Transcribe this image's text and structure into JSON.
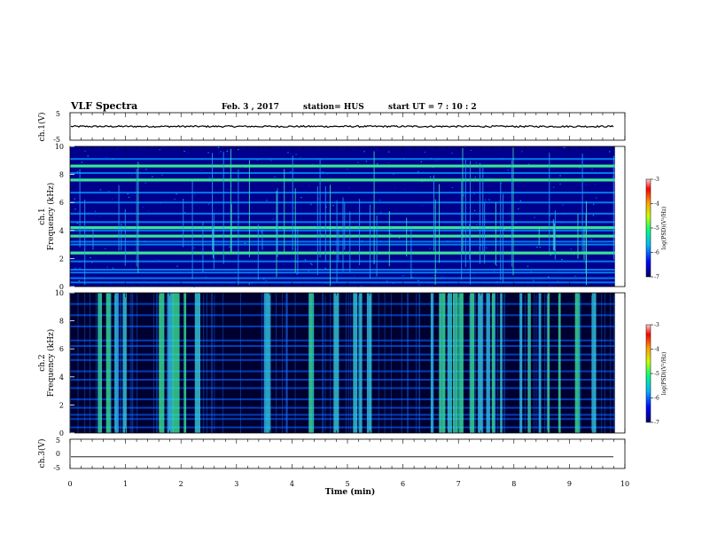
{
  "header": {
    "title": "VLF Spectra",
    "date": "Feb. 3 , 2017",
    "station": "station= HUS",
    "start": "start UT = 7 : 10 : 2"
  },
  "labels": {
    "ch1_voltage": "ch.1(V)",
    "ch1_channel": "ch.1",
    "ch1_freq": "Frequency (kHz)",
    "ch2_channel": "ch.2",
    "ch2_freq": "Frequency (kHz)",
    "ch3_voltage": "ch.3(V)",
    "colorbar_label_1": "log(PSD)(V²/Hz)",
    "colorbar_label_2": "log(PSD)(V²/Hz)",
    "xlabel": "Time (min)"
  },
  "colors": {
    "background": "#00003a",
    "accent_green": "#4cf03c",
    "accent_cyan": "#3cd0ff"
  },
  "chart_data": [
    {
      "type": "line",
      "panel": "ch1_waveform",
      "ylabel": "ch.1(V)",
      "ylim": [
        -5,
        5
      ],
      "yticks": [
        "5",
        "-5"
      ],
      "xlim": [
        0,
        10
      ],
      "description_values": {
        "baseline_v": 0.0,
        "amplitude_v": 0.3
      }
    },
    {
      "type": "heatmap",
      "panel": "ch1_spectrogram",
      "ylabel": "Frequency (kHz)",
      "ylim": [
        0,
        10
      ],
      "yticks": [
        "0",
        "2",
        "4",
        "6",
        "8",
        "10"
      ],
      "xlim": [
        0,
        9.82
      ],
      "colorbar": {
        "range": [
          -7,
          -3
        ],
        "ticks": [
          "-3",
          "-4",
          "-5",
          "-6",
          "-7"
        ]
      },
      "bands_khz": [
        0.3,
        0.6,
        1.0,
        1.2,
        1.8,
        2.4,
        3.0,
        3.2,
        3.6,
        4.0,
        4.2,
        4.6,
        5.2,
        6.0,
        6.7,
        7.6,
        8.1,
        8.6,
        9.1
      ],
      "strong_bands_khz": [
        2.4,
        3.6,
        4.2,
        7.6,
        8.6
      ]
    },
    {
      "type": "heatmap",
      "panel": "ch2_spectrogram",
      "ylabel": "Frequency (kHz)",
      "ylim": [
        0,
        10
      ],
      "yticks": [
        "0",
        "2",
        "4",
        "6",
        "8",
        "10"
      ],
      "xlim": [
        0,
        9.82
      ],
      "colorbar": {
        "range": [
          -7,
          -3
        ],
        "ticks": [
          "-3",
          "-4",
          "-5",
          "-6",
          "-7"
        ]
      },
      "bands_khz": [
        0.4,
        1.0,
        1.3,
        1.8,
        2.4,
        3.2,
        3.8,
        4.4,
        5.2,
        5.6,
        6.2,
        6.6,
        7.6,
        8.4,
        9.2
      ],
      "burst_times_min": [
        0.5,
        0.65,
        0.8,
        0.95,
        1.6,
        1.75,
        1.85,
        2.05,
        2.25,
        3.5,
        4.3,
        4.75,
        5.1,
        5.2,
        5.35,
        6.5,
        6.65,
        6.8,
        6.9,
        7.0,
        7.2,
        7.35,
        7.5,
        7.6,
        7.75,
        8.1,
        8.25,
        8.45,
        8.6,
        8.8,
        9.1,
        9.4
      ]
    },
    {
      "type": "line",
      "panel": "ch3_waveform",
      "ylabel": "ch.3(V)",
      "ylim": [
        -5,
        5
      ],
      "yticks": [
        "5",
        "0",
        "-5"
      ],
      "xlim": [
        0,
        10
      ],
      "xlabel": "Time (min)",
      "xticks": [
        "0",
        "1",
        "2",
        "3",
        "4",
        "5",
        "6",
        "7",
        "8",
        "9",
        "10"
      ],
      "description_values": {
        "baseline_v": -1.0
      }
    }
  ]
}
